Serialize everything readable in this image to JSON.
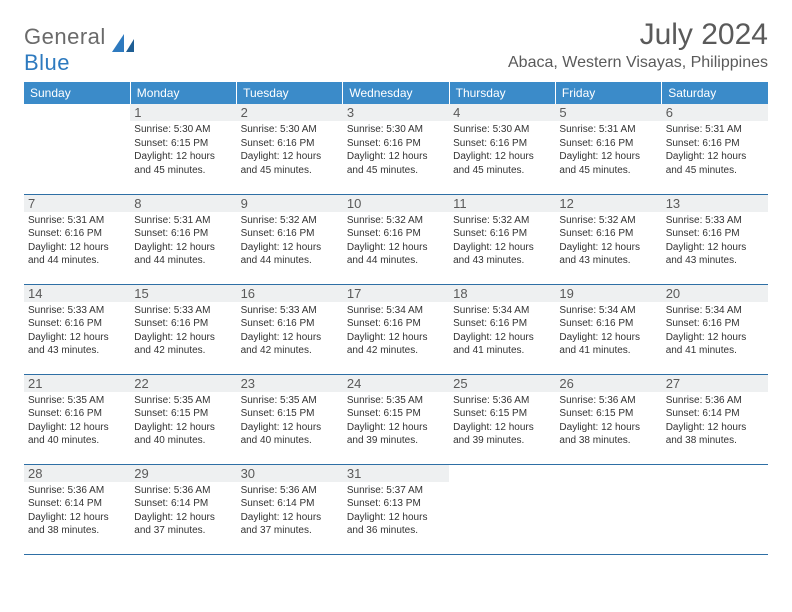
{
  "logo": {
    "text1": "General",
    "text2": "Blue"
  },
  "title": "July 2024",
  "location": "Abaca, Western Visayas, Philippines",
  "colors": {
    "header_bg": "#3b8bc9",
    "header_text": "#ffffff",
    "border": "#2e6fa5",
    "daynum_bg": "#eef0f1",
    "text": "#5a5a5a",
    "logo_blue": "#2e7abf"
  },
  "weekdays": [
    "Sunday",
    "Monday",
    "Tuesday",
    "Wednesday",
    "Thursday",
    "Friday",
    "Saturday"
  ],
  "days": [
    {
      "n": "",
      "sunrise": "",
      "sunset": "",
      "daylight": ""
    },
    {
      "n": "1",
      "sunrise": "Sunrise: 5:30 AM",
      "sunset": "Sunset: 6:15 PM",
      "daylight": "Daylight: 12 hours and 45 minutes."
    },
    {
      "n": "2",
      "sunrise": "Sunrise: 5:30 AM",
      "sunset": "Sunset: 6:16 PM",
      "daylight": "Daylight: 12 hours and 45 minutes."
    },
    {
      "n": "3",
      "sunrise": "Sunrise: 5:30 AM",
      "sunset": "Sunset: 6:16 PM",
      "daylight": "Daylight: 12 hours and 45 minutes."
    },
    {
      "n": "4",
      "sunrise": "Sunrise: 5:30 AM",
      "sunset": "Sunset: 6:16 PM",
      "daylight": "Daylight: 12 hours and 45 minutes."
    },
    {
      "n": "5",
      "sunrise": "Sunrise: 5:31 AM",
      "sunset": "Sunset: 6:16 PM",
      "daylight": "Daylight: 12 hours and 45 minutes."
    },
    {
      "n": "6",
      "sunrise": "Sunrise: 5:31 AM",
      "sunset": "Sunset: 6:16 PM",
      "daylight": "Daylight: 12 hours and 45 minutes."
    },
    {
      "n": "7",
      "sunrise": "Sunrise: 5:31 AM",
      "sunset": "Sunset: 6:16 PM",
      "daylight": "Daylight: 12 hours and 44 minutes."
    },
    {
      "n": "8",
      "sunrise": "Sunrise: 5:31 AM",
      "sunset": "Sunset: 6:16 PM",
      "daylight": "Daylight: 12 hours and 44 minutes."
    },
    {
      "n": "9",
      "sunrise": "Sunrise: 5:32 AM",
      "sunset": "Sunset: 6:16 PM",
      "daylight": "Daylight: 12 hours and 44 minutes."
    },
    {
      "n": "10",
      "sunrise": "Sunrise: 5:32 AM",
      "sunset": "Sunset: 6:16 PM",
      "daylight": "Daylight: 12 hours and 44 minutes."
    },
    {
      "n": "11",
      "sunrise": "Sunrise: 5:32 AM",
      "sunset": "Sunset: 6:16 PM",
      "daylight": "Daylight: 12 hours and 43 minutes."
    },
    {
      "n": "12",
      "sunrise": "Sunrise: 5:32 AM",
      "sunset": "Sunset: 6:16 PM",
      "daylight": "Daylight: 12 hours and 43 minutes."
    },
    {
      "n": "13",
      "sunrise": "Sunrise: 5:33 AM",
      "sunset": "Sunset: 6:16 PM",
      "daylight": "Daylight: 12 hours and 43 minutes."
    },
    {
      "n": "14",
      "sunrise": "Sunrise: 5:33 AM",
      "sunset": "Sunset: 6:16 PM",
      "daylight": "Daylight: 12 hours and 43 minutes."
    },
    {
      "n": "15",
      "sunrise": "Sunrise: 5:33 AM",
      "sunset": "Sunset: 6:16 PM",
      "daylight": "Daylight: 12 hours and 42 minutes."
    },
    {
      "n": "16",
      "sunrise": "Sunrise: 5:33 AM",
      "sunset": "Sunset: 6:16 PM",
      "daylight": "Daylight: 12 hours and 42 minutes."
    },
    {
      "n": "17",
      "sunrise": "Sunrise: 5:34 AM",
      "sunset": "Sunset: 6:16 PM",
      "daylight": "Daylight: 12 hours and 42 minutes."
    },
    {
      "n": "18",
      "sunrise": "Sunrise: 5:34 AM",
      "sunset": "Sunset: 6:16 PM",
      "daylight": "Daylight: 12 hours and 41 minutes."
    },
    {
      "n": "19",
      "sunrise": "Sunrise: 5:34 AM",
      "sunset": "Sunset: 6:16 PM",
      "daylight": "Daylight: 12 hours and 41 minutes."
    },
    {
      "n": "20",
      "sunrise": "Sunrise: 5:34 AM",
      "sunset": "Sunset: 6:16 PM",
      "daylight": "Daylight: 12 hours and 41 minutes."
    },
    {
      "n": "21",
      "sunrise": "Sunrise: 5:35 AM",
      "sunset": "Sunset: 6:16 PM",
      "daylight": "Daylight: 12 hours and 40 minutes."
    },
    {
      "n": "22",
      "sunrise": "Sunrise: 5:35 AM",
      "sunset": "Sunset: 6:15 PM",
      "daylight": "Daylight: 12 hours and 40 minutes."
    },
    {
      "n": "23",
      "sunrise": "Sunrise: 5:35 AM",
      "sunset": "Sunset: 6:15 PM",
      "daylight": "Daylight: 12 hours and 40 minutes."
    },
    {
      "n": "24",
      "sunrise": "Sunrise: 5:35 AM",
      "sunset": "Sunset: 6:15 PM",
      "daylight": "Daylight: 12 hours and 39 minutes."
    },
    {
      "n": "25",
      "sunrise": "Sunrise: 5:36 AM",
      "sunset": "Sunset: 6:15 PM",
      "daylight": "Daylight: 12 hours and 39 minutes."
    },
    {
      "n": "26",
      "sunrise": "Sunrise: 5:36 AM",
      "sunset": "Sunset: 6:15 PM",
      "daylight": "Daylight: 12 hours and 38 minutes."
    },
    {
      "n": "27",
      "sunrise": "Sunrise: 5:36 AM",
      "sunset": "Sunset: 6:14 PM",
      "daylight": "Daylight: 12 hours and 38 minutes."
    },
    {
      "n": "28",
      "sunrise": "Sunrise: 5:36 AM",
      "sunset": "Sunset: 6:14 PM",
      "daylight": "Daylight: 12 hours and 38 minutes."
    },
    {
      "n": "29",
      "sunrise": "Sunrise: 5:36 AM",
      "sunset": "Sunset: 6:14 PM",
      "daylight": "Daylight: 12 hours and 37 minutes."
    },
    {
      "n": "30",
      "sunrise": "Sunrise: 5:36 AM",
      "sunset": "Sunset: 6:14 PM",
      "daylight": "Daylight: 12 hours and 37 minutes."
    },
    {
      "n": "31",
      "sunrise": "Sunrise: 5:37 AM",
      "sunset": "Sunset: 6:13 PM",
      "daylight": "Daylight: 12 hours and 36 minutes."
    },
    {
      "n": "",
      "sunrise": "",
      "sunset": "",
      "daylight": ""
    },
    {
      "n": "",
      "sunrise": "",
      "sunset": "",
      "daylight": ""
    },
    {
      "n": "",
      "sunrise": "",
      "sunset": "",
      "daylight": ""
    }
  ]
}
